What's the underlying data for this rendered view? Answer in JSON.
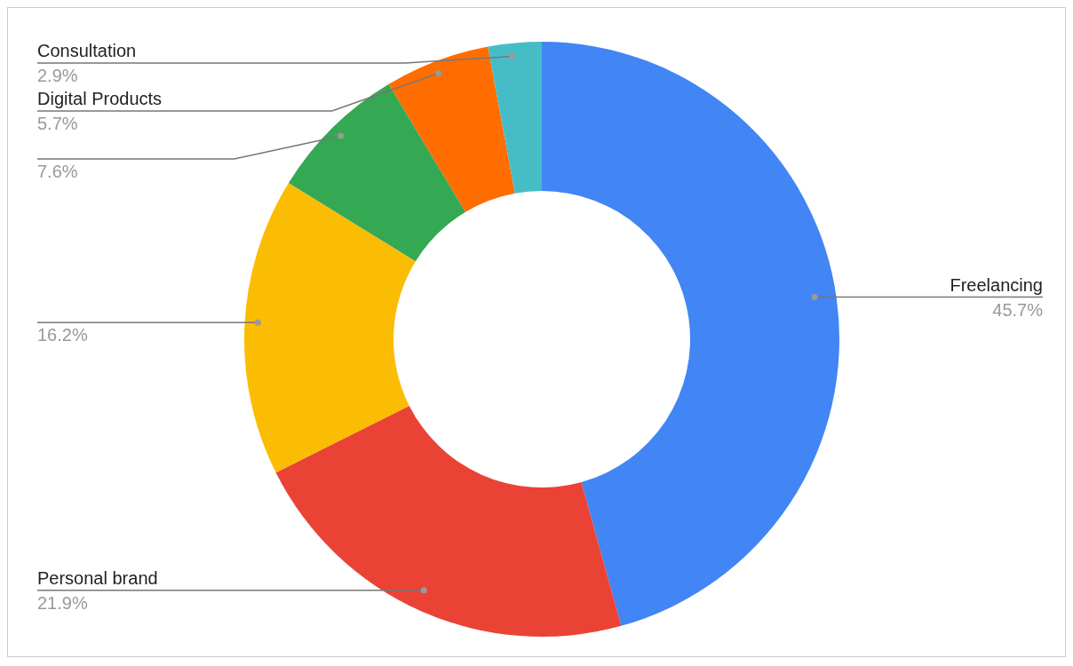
{
  "chart_data": {
    "type": "donut",
    "categories": [
      "Freelancing",
      "Personal brand",
      null,
      null,
      "Digital Products",
      "Consultation"
    ],
    "values": [
      45.7,
      21.9,
      16.2,
      7.6,
      5.7,
      2.9
    ],
    "value_labels": [
      "45.7%",
      "21.9%",
      "16.2%",
      "7.6%",
      "5.7%",
      "2.9%"
    ],
    "colors": [
      "#4285f4",
      "#ea4335",
      "#fbbc04",
      "#34a853",
      "#ff6d01",
      "#46bdc6"
    ],
    "legend": false
  }
}
